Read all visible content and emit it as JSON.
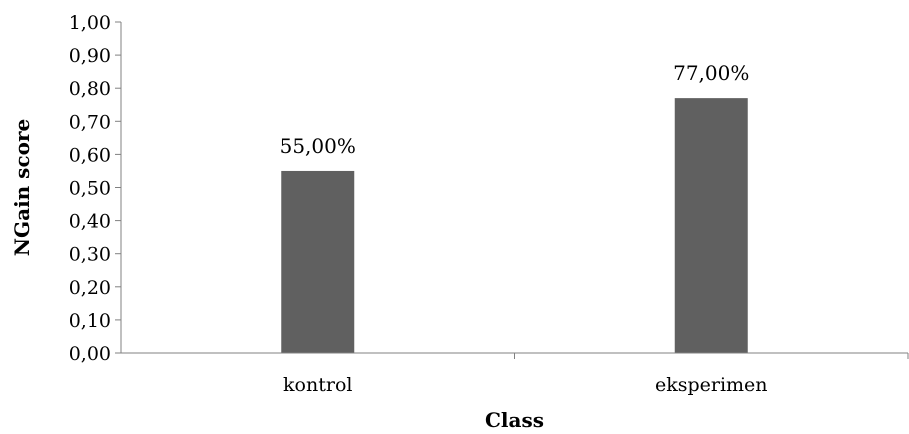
{
  "chart_data": {
    "type": "bar",
    "categories": [
      "kontrol",
      "eksperimen"
    ],
    "values": [
      0.55,
      0.77
    ],
    "data_labels": [
      "55,00%",
      "77,00%"
    ],
    "title": "",
    "xlabel": "Class",
    "ylabel": "NGain  score",
    "ylim": [
      0,
      1
    ],
    "yticks": [
      "0,00",
      "0,10",
      "0,20",
      "0,30",
      "0,40",
      "0,50",
      "0,60",
      "0,70",
      "0,80",
      "0,90",
      "1,00"
    ],
    "grid": false,
    "legend": "none",
    "bar_color": "#606060"
  }
}
